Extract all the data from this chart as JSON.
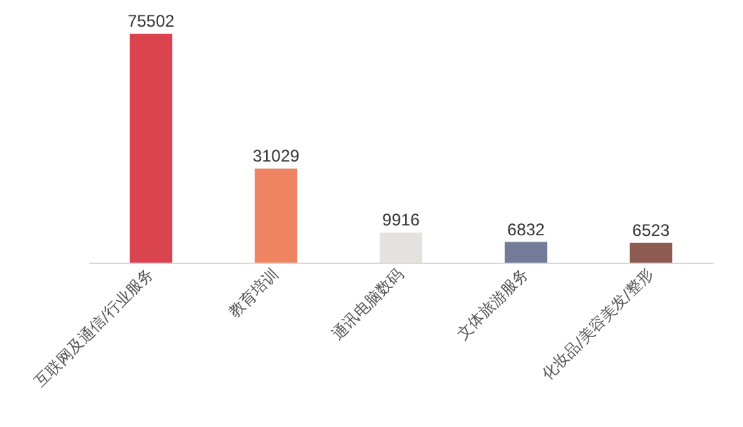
{
  "chart_data": {
    "type": "bar",
    "categories": [
      "互联网及通信/行业服务",
      "教育培训",
      "通讯电脑数码",
      "文体旅游服务",
      "化妆品/美容美发/整形"
    ],
    "values": [
      75502,
      31029,
      9916,
      6832,
      6523
    ],
    "colors": [
      "#d9444f",
      "#ef8462",
      "#e4e2de",
      "#727b98",
      "#8e5b50"
    ],
    "data_labels": true
  }
}
